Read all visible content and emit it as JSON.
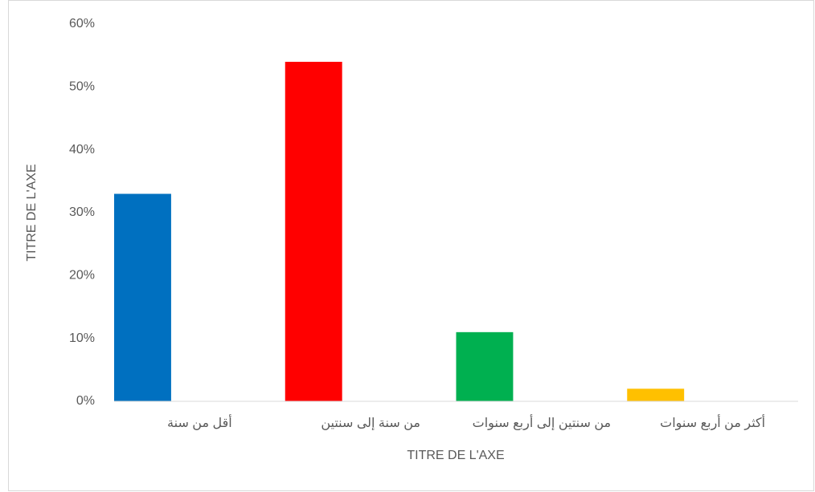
{
  "chart_data": {
    "type": "bar",
    "categories": [
      "أقل من سنة",
      "من سنة إلى سنتين",
      "من سنتين إلى أربع سنوات",
      "أكثر من أربع سنوات"
    ],
    "values": [
      33,
      54,
      11,
      2
    ],
    "colors": [
      "#0070c0",
      "#ff0000",
      "#00b050",
      "#ffc000"
    ],
    "ylim": [
      0,
      60
    ],
    "yticks": [
      {
        "value": 0,
        "label": "0%"
      },
      {
        "value": 10,
        "label": "10%"
      },
      {
        "value": 20,
        "label": "20%"
      },
      {
        "value": 30,
        "label": "30%"
      },
      {
        "value": 40,
        "label": "40%"
      },
      {
        "value": 50,
        "label": "50%"
      },
      {
        "value": 60,
        "label": "60%"
      }
    ],
    "x_label": "TITRE DE L'AXE",
    "y_label": "TITRE DE L'AXE",
    "grid": false
  }
}
